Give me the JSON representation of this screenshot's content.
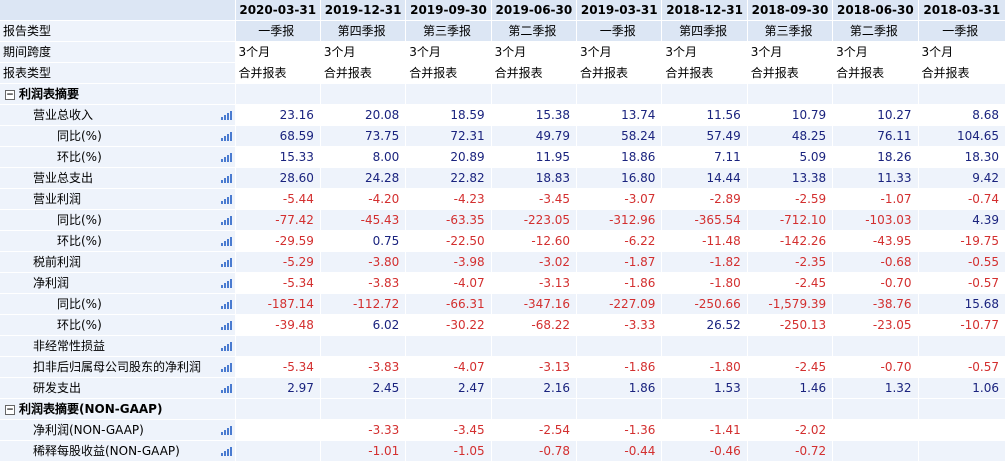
{
  "columns": [
    "2020-03-31",
    "2019-12-31",
    "2019-09-30",
    "2019-06-30",
    "2019-03-31",
    "2018-12-31",
    "2018-09-30",
    "2018-06-30",
    "2018-03-31"
  ],
  "meta": {
    "report_type_label": "报告类型",
    "report_types": [
      "一季报",
      "第四季报",
      "第三季报",
      "第二季报",
      "一季报",
      "第四季报",
      "第三季报",
      "第二季报",
      "一季报"
    ],
    "period_label": "期间跨度",
    "periods": [
      "3个月",
      "3个月",
      "3个月",
      "3个月",
      "3个月",
      "3个月",
      "3个月",
      "3个月",
      "3个月"
    ],
    "statement_label": "报表类型",
    "statements": [
      "合并报表",
      "合并报表",
      "合并报表",
      "合并报表",
      "合并报表",
      "合并报表",
      "合并报表",
      "合并报表",
      "合并报表"
    ]
  },
  "sections": [
    {
      "title": "利润表摘要",
      "toggle": "−",
      "rows": [
        {
          "label": "营业总收入",
          "indent": 1,
          "chart": true,
          "values": [
            "23.16",
            "20.08",
            "18.59",
            "15.38",
            "13.74",
            "11.56",
            "10.79",
            "10.27",
            "8.68"
          ]
        },
        {
          "label": "同比(%)",
          "indent": 2,
          "chart": true,
          "values": [
            "68.59",
            "73.75",
            "72.31",
            "49.79",
            "58.24",
            "57.49",
            "48.25",
            "76.11",
            "104.65"
          ]
        },
        {
          "label": "环比(%)",
          "indent": 2,
          "chart": true,
          "values": [
            "15.33",
            "8.00",
            "20.89",
            "11.95",
            "18.86",
            "7.11",
            "5.09",
            "18.26",
            "18.30"
          ]
        },
        {
          "label": "营业总支出",
          "indent": 1,
          "chart": true,
          "values": [
            "28.60",
            "24.28",
            "22.82",
            "18.83",
            "16.80",
            "14.44",
            "13.38",
            "11.33",
            "9.42"
          ]
        },
        {
          "label": "营业利润",
          "indent": 1,
          "chart": true,
          "values": [
            "-5.44",
            "-4.20",
            "-4.23",
            "-3.45",
            "-3.07",
            "-2.89",
            "-2.59",
            "-1.07",
            "-0.74"
          ]
        },
        {
          "label": "同比(%)",
          "indent": 2,
          "chart": true,
          "values": [
            "-77.42",
            "-45.43",
            "-63.35",
            "-223.05",
            "-312.96",
            "-365.54",
            "-712.10",
            "-103.03",
            "4.39"
          ]
        },
        {
          "label": "环比(%)",
          "indent": 2,
          "chart": true,
          "values": [
            "-29.59",
            "0.75",
            "-22.50",
            "-12.60",
            "-6.22",
            "-11.48",
            "-142.26",
            "-43.95",
            "-19.75"
          ]
        },
        {
          "label": "税前利润",
          "indent": 1,
          "chart": true,
          "values": [
            "-5.29",
            "-3.80",
            "-3.98",
            "-3.02",
            "-1.87",
            "-1.82",
            "-2.35",
            "-0.68",
            "-0.55"
          ]
        },
        {
          "label": "净利润",
          "indent": 1,
          "chart": true,
          "values": [
            "-5.34",
            "-3.83",
            "-4.07",
            "-3.13",
            "-1.86",
            "-1.80",
            "-2.45",
            "-0.70",
            "-0.57"
          ]
        },
        {
          "label": "同比(%)",
          "indent": 2,
          "chart": true,
          "values": [
            "-187.14",
            "-112.72",
            "-66.31",
            "-347.16",
            "-227.09",
            "-250.66",
            "-1,579.39",
            "-38.76",
            "15.68"
          ]
        },
        {
          "label": "环比(%)",
          "indent": 2,
          "chart": true,
          "values": [
            "-39.48",
            "6.02",
            "-30.22",
            "-68.22",
            "-3.33",
            "26.52",
            "-250.13",
            "-23.05",
            "-10.77"
          ]
        },
        {
          "label": "非经常性损益",
          "indent": 1,
          "chart": true,
          "values": [
            "",
            "",
            "",
            "",
            "",
            "",
            "",
            "",
            ""
          ]
        },
        {
          "label": "扣非后归属母公司股东的净利润",
          "indent": 1,
          "chart": true,
          "values": [
            "-5.34",
            "-3.83",
            "-4.07",
            "-3.13",
            "-1.86",
            "-1.80",
            "-2.45",
            "-0.70",
            "-0.57"
          ]
        },
        {
          "label": "研发支出",
          "indent": 1,
          "chart": true,
          "values": [
            "2.97",
            "2.45",
            "2.47",
            "2.16",
            "1.86",
            "1.53",
            "1.46",
            "1.32",
            "1.06"
          ]
        }
      ]
    },
    {
      "title": "利润表摘要(NON-GAAP)",
      "toggle": "−",
      "rows": [
        {
          "label": "净利润(NON-GAAP)",
          "indent": 1,
          "chart": true,
          "values": [
            "",
            "-3.33",
            "-3.45",
            "-2.54",
            "-1.36",
            "-1.41",
            "-2.02",
            "",
            ""
          ]
        },
        {
          "label": "稀释每股收益(NON-GAAP)",
          "indent": 1,
          "chart": true,
          "values": [
            "",
            "-1.01",
            "-1.05",
            "-0.78",
            "-0.44",
            "-0.46",
            "-0.72",
            "",
            ""
          ]
        }
      ]
    }
  ],
  "colors": {
    "positive": "#1a237e",
    "negative": "#d32f2f",
    "header_bg": "#dce6f4",
    "label_bg": "#eef3fb",
    "chart_icon": "#4a7bd0"
  }
}
